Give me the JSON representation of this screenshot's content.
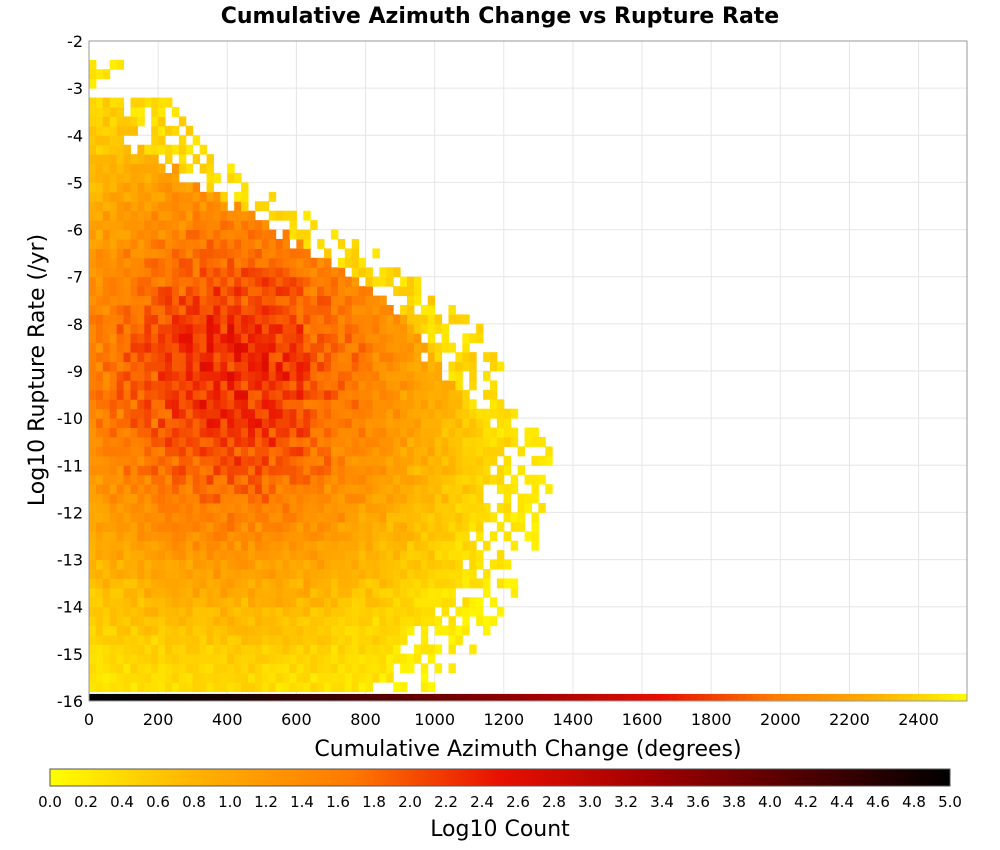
{
  "chart_data": {
    "type": "heatmap",
    "title": "Cumulative Azimuth Change vs Rupture Rate",
    "xlabel": "Cumulative Azimuth Change (degrees)",
    "ylabel": "Log10 Rupture Rate (/yr)",
    "xlim": [
      0,
      2540
    ],
    "ylim": [
      -16,
      -2
    ],
    "x_ticks": [
      0,
      200,
      400,
      600,
      800,
      1000,
      1200,
      1400,
      1600,
      1800,
      2000,
      2200,
      2400
    ],
    "y_ticks": [
      -16,
      -15,
      -14,
      -13,
      -12,
      -11,
      -10,
      -9,
      -8,
      -7,
      -6,
      -5,
      -4,
      -3,
      -2
    ],
    "grid": true,
    "colorbar": {
      "label": "Log10 Count",
      "range": [
        0.0,
        5.0
      ],
      "ticks": [
        "0.0",
        "0.2",
        "0.4",
        "0.6",
        "0.8",
        "1.0",
        "1.2",
        "1.4",
        "1.6",
        "1.8",
        "2.0",
        "2.2",
        "2.4",
        "2.6",
        "2.8",
        "3.0",
        "3.2",
        "3.4",
        "3.6",
        "3.8",
        "4.0",
        "4.2",
        "4.4",
        "4.6",
        "4.8",
        "5.0"
      ],
      "colors": [
        "#ffff00",
        "#ffb000",
        "#ff7a00",
        "#e81000",
        "#a00000",
        "#500000",
        "#000000"
      ],
      "placement": "bottom"
    },
    "bin_width_deg": 20,
    "bin_height_log": 0.2,
    "density_summary": {
      "peak_x": 400,
      "peak_y": -7.5,
      "peak_log10_count": 2.3,
      "max_x_extent": 1300,
      "top_extent_y": -2.8
    },
    "bottom_row": {
      "y": -16,
      "description": "floor bin row at rate ≈ -16",
      "x_range": [
        0,
        2540
      ],
      "log10_count_start": 5.0,
      "log10_count_end": 0.0
    }
  }
}
